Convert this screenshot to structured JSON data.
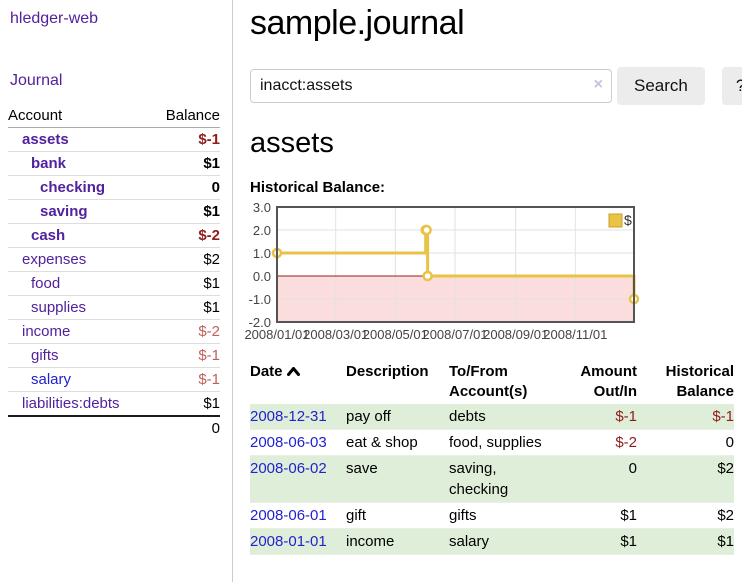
{
  "sidebar": {
    "app_title": "hledger-web",
    "journal_label": "Journal",
    "accounts_table": {
      "headers": {
        "account": "Account",
        "balance": "Balance"
      },
      "rows": [
        {
          "name": "assets",
          "depth": 1,
          "bold": true,
          "balance": "$-1",
          "neg": "strong"
        },
        {
          "name": "bank",
          "depth": 2,
          "bold": true,
          "balance": "$1"
        },
        {
          "name": "checking",
          "depth": 3,
          "bold": true,
          "balance": "0"
        },
        {
          "name": "saving",
          "depth": 3,
          "bold": true,
          "balance": "$1"
        },
        {
          "name": "cash",
          "depth": 2,
          "bold": true,
          "balance": "$-2",
          "neg": "strong"
        },
        {
          "name": "expenses",
          "depth": 1,
          "bold": false,
          "balance": "$2"
        },
        {
          "name": "food",
          "depth": 2,
          "bold": false,
          "balance": "$1"
        },
        {
          "name": "supplies",
          "depth": 2,
          "bold": false,
          "balance": "$1"
        },
        {
          "name": "income",
          "depth": 1,
          "bold": false,
          "balance": "$-2",
          "neg": "soft"
        },
        {
          "name": "gifts",
          "depth": 2,
          "bold": false,
          "balance": "$-1",
          "neg": "soft"
        },
        {
          "name": "salary",
          "depth": 2,
          "bold": false,
          "balance": "$-1",
          "neg": "soft",
          "link_color": "blue"
        },
        {
          "name": "liabilities:debts",
          "depth": 1,
          "bold": false,
          "balance": "$1"
        }
      ],
      "total": "0"
    }
  },
  "header": {
    "title": "sample.journal"
  },
  "search": {
    "query": "inacct:assets",
    "clear_icon": "×",
    "search_label": "Search",
    "help_label": "?"
  },
  "account_page": {
    "heading": "assets",
    "chart_label": "Historical Balance:"
  },
  "chart_data": {
    "type": "line-step",
    "title": "Historical Balance",
    "series": [
      {
        "name": "$",
        "color": "#e9c246",
        "points": [
          [
            "2008-01-01",
            1
          ],
          [
            "2008-06-01",
            2
          ],
          [
            "2008-06-02",
            2
          ],
          [
            "2008-06-03",
            0
          ],
          [
            "2008-12-31",
            -1
          ]
        ]
      }
    ],
    "xlim": [
      "2008-01-01",
      "2008-12-31"
    ],
    "ylim": [
      -2,
      3
    ],
    "y_ticks": [
      3,
      2,
      1,
      0,
      -1,
      -2
    ],
    "x_ticks": [
      {
        "date": "2008-01-01",
        "label": "2008/01/01"
      },
      {
        "date": "2008-03-01",
        "label": "2008/03/01"
      },
      {
        "date": "2008-05-01",
        "label": "2008/05/01"
      },
      {
        "date": "2008-07-01",
        "label": "2008/07/01"
      },
      {
        "date": "2008-09-01",
        "label": "2008/09/01"
      },
      {
        "date": "2008-11-01",
        "label": "2008/11/01"
      }
    ],
    "grid": true,
    "legend": {
      "position": "top-right",
      "label": "$"
    },
    "colors": {
      "grid": "#e2e2e2",
      "zero_line": "#9b1c1c",
      "negative_fill": "#fbdddd",
      "border": "#545454",
      "marker_fill": "#ffffff",
      "tick_text": "#444444",
      "legend_border": "#c9a227"
    }
  },
  "register_table": {
    "headers": {
      "date": "Date",
      "description": "Description",
      "accounts": "To/From Account(s)",
      "amount": "Amount Out/In",
      "balance": "Historical Balance",
      "sort": "up-chevron"
    },
    "rows": [
      {
        "date": "2008-12-31",
        "description": "pay off",
        "accounts": "debts",
        "amount": "$-1",
        "amount_neg": true,
        "balance": "$-1",
        "balance_neg": true
      },
      {
        "date": "2008-06-03",
        "description": "eat & shop",
        "accounts": "food, supplies",
        "amount": "$-2",
        "amount_neg": true,
        "balance": "0",
        "balance_neg": false
      },
      {
        "date": "2008-06-02",
        "description": "save",
        "accounts": "saving, checking",
        "amount": "0",
        "amount_neg": false,
        "balance": "$2",
        "balance_neg": false
      },
      {
        "date": "2008-06-01",
        "description": "gift",
        "accounts": "gifts",
        "amount": "$1",
        "amount_neg": false,
        "balance": "$2",
        "balance_neg": false
      },
      {
        "date": "2008-01-01",
        "description": "income",
        "accounts": "salary",
        "amount": "$1",
        "amount_neg": false,
        "balance": "$1",
        "balance_neg": false
      }
    ]
  }
}
